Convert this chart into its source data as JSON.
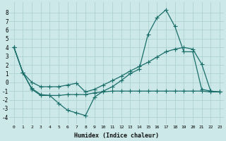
{
  "xlabel": "Humidex (Indice chaleur)",
  "xlim": [
    -0.5,
    23.5
  ],
  "ylim": [
    -4.8,
    9.2
  ],
  "yticks": [
    -4,
    -3,
    -2,
    -1,
    0,
    1,
    2,
    3,
    4,
    5,
    6,
    7,
    8
  ],
  "xticks": [
    0,
    1,
    2,
    3,
    4,
    5,
    6,
    7,
    8,
    9,
    10,
    11,
    12,
    13,
    14,
    15,
    16,
    17,
    18,
    19,
    20,
    21,
    22,
    23
  ],
  "bg_color": "#cce8e8",
  "grid_color": "#aacece",
  "line_color": "#1a6e6a",
  "line1_x": [
    0,
    1,
    2,
    3,
    4,
    5,
    6,
    7,
    8,
    9,
    10,
    11,
    12,
    13,
    14,
    15,
    16,
    17,
    18,
    19,
    20,
    21,
    22,
    23
  ],
  "line1_y": [
    4.0,
    1.1,
    -0.7,
    -1.4,
    -1.5,
    -2.4,
    -3.2,
    -3.5,
    -3.8,
    -1.7,
    -1.0,
    -0.5,
    0.2,
    1.0,
    1.5,
    5.5,
    7.4,
    8.3,
    6.4,
    3.5,
    3.5,
    -0.8,
    -1.0,
    -1.1
  ],
  "line2_x": [
    0,
    1,
    2,
    3,
    4,
    5,
    6,
    7,
    8,
    9,
    10,
    11,
    12,
    13,
    14,
    15,
    16,
    17,
    18,
    19,
    20,
    21,
    22,
    23
  ],
  "line2_y": [
    4.0,
    1.1,
    0.0,
    -0.5,
    -0.5,
    -0.5,
    -0.3,
    -0.1,
    -1.1,
    -0.8,
    -0.3,
    0.2,
    0.7,
    1.3,
    1.8,
    2.3,
    2.9,
    3.5,
    3.8,
    4.0,
    3.8,
    2.1,
    -1.0,
    -1.1
  ],
  "line3_x": [
    0,
    1,
    2,
    3,
    4,
    5,
    6,
    7,
    8,
    9,
    10,
    11,
    12,
    13,
    14,
    15,
    16,
    17,
    18,
    19,
    20,
    21,
    22,
    23
  ],
  "line3_y": [
    4.0,
    1.1,
    -0.8,
    -1.5,
    -1.5,
    -1.5,
    -1.4,
    -1.4,
    -1.4,
    -1.2,
    -1.1,
    -1.0,
    -1.0,
    -1.0,
    -1.0,
    -1.0,
    -1.0,
    -1.0,
    -1.0,
    -1.0,
    -1.0,
    -1.0,
    -1.1,
    -1.1
  ]
}
